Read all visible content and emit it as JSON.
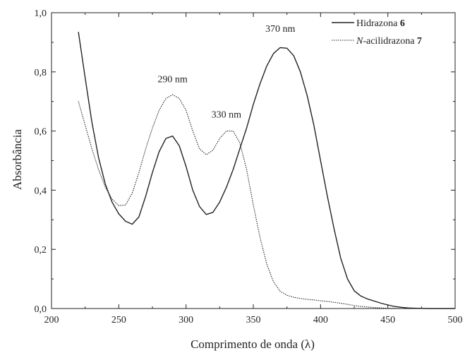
{
  "chart_data": {
    "type": "line",
    "title": "",
    "xlabel": "Comprimento de onda (λ)",
    "ylabel": "Absorbância",
    "xlim": [
      200,
      500
    ],
    "ylim": [
      0.0,
      1.0
    ],
    "x_ticks": [
      200,
      250,
      300,
      350,
      400,
      450,
      500
    ],
    "x_tick_labels": [
      "200",
      "250",
      "300",
      "350",
      "400",
      "450",
      "500"
    ],
    "y_ticks": [
      0.0,
      0.2,
      0.4,
      0.6,
      0.8,
      1.0
    ],
    "y_tick_labels": [
      "0,0",
      "0,2",
      "0,4",
      "0,6",
      "0,8",
      "1,0"
    ],
    "grid": false,
    "legend_position": "top-right",
    "annotations": [
      {
        "text": "370 nm",
        "x": 370,
        "y": 0.935
      },
      {
        "text": "290 nm",
        "x": 290,
        "y": 0.765
      },
      {
        "text": "330 nm",
        "x": 330,
        "y": 0.645
      }
    ],
    "series": [
      {
        "name_plain": "Hidrazona ",
        "name_bold": "6",
        "style": "solid",
        "color": "#222222",
        "points": [
          [
            220,
            0.935
          ],
          [
            225,
            0.78
          ],
          [
            230,
            0.63
          ],
          [
            235,
            0.51
          ],
          [
            240,
            0.42
          ],
          [
            245,
            0.36
          ],
          [
            250,
            0.32
          ],
          [
            255,
            0.295
          ],
          [
            260,
            0.285
          ],
          [
            265,
            0.31
          ],
          [
            270,
            0.38
          ],
          [
            275,
            0.46
          ],
          [
            280,
            0.53
          ],
          [
            285,
            0.575
          ],
          [
            290,
            0.583
          ],
          [
            295,
            0.55
          ],
          [
            300,
            0.48
          ],
          [
            305,
            0.4
          ],
          [
            310,
            0.345
          ],
          [
            315,
            0.318
          ],
          [
            320,
            0.325
          ],
          [
            325,
            0.36
          ],
          [
            330,
            0.41
          ],
          [
            335,
            0.47
          ],
          [
            340,
            0.54
          ],
          [
            345,
            0.61
          ],
          [
            350,
            0.69
          ],
          [
            355,
            0.76
          ],
          [
            360,
            0.82
          ],
          [
            365,
            0.862
          ],
          [
            370,
            0.882
          ],
          [
            375,
            0.88
          ],
          [
            380,
            0.855
          ],
          [
            385,
            0.8
          ],
          [
            390,
            0.72
          ],
          [
            395,
            0.62
          ],
          [
            400,
            0.5
          ],
          [
            405,
            0.38
          ],
          [
            410,
            0.27
          ],
          [
            415,
            0.17
          ],
          [
            420,
            0.1
          ],
          [
            425,
            0.06
          ],
          [
            430,
            0.042
          ],
          [
            435,
            0.032
          ],
          [
            440,
            0.025
          ],
          [
            445,
            0.018
          ],
          [
            450,
            0.012
          ],
          [
            455,
            0.007
          ],
          [
            460,
            0.004
          ],
          [
            465,
            0.002
          ],
          [
            470,
            0.001
          ],
          [
            480,
            0.0
          ],
          [
            500,
            0.0
          ]
        ]
      },
      {
        "name_plain": "-acilidrazona ",
        "name_italic": "N",
        "name_bold": "7",
        "style": "dotted",
        "color": "#222222",
        "points": [
          [
            220,
            0.7
          ],
          [
            225,
            0.62
          ],
          [
            230,
            0.54
          ],
          [
            235,
            0.47
          ],
          [
            240,
            0.41
          ],
          [
            245,
            0.37
          ],
          [
            250,
            0.348
          ],
          [
            255,
            0.35
          ],
          [
            260,
            0.39
          ],
          [
            265,
            0.46
          ],
          [
            270,
            0.54
          ],
          [
            275,
            0.61
          ],
          [
            280,
            0.67
          ],
          [
            285,
            0.71
          ],
          [
            290,
            0.723
          ],
          [
            295,
            0.71
          ],
          [
            300,
            0.67
          ],
          [
            305,
            0.6
          ],
          [
            310,
            0.54
          ],
          [
            315,
            0.52
          ],
          [
            320,
            0.535
          ],
          [
            325,
            0.575
          ],
          [
            330,
            0.6
          ],
          [
            335,
            0.6
          ],
          [
            340,
            0.56
          ],
          [
            345,
            0.47
          ],
          [
            350,
            0.35
          ],
          [
            355,
            0.24
          ],
          [
            360,
            0.15
          ],
          [
            365,
            0.09
          ],
          [
            370,
            0.058
          ],
          [
            375,
            0.045
          ],
          [
            380,
            0.038
          ],
          [
            385,
            0.034
          ],
          [
            390,
            0.031
          ],
          [
            395,
            0.029
          ],
          [
            400,
            0.026
          ],
          [
            405,
            0.024
          ],
          [
            410,
            0.021
          ],
          [
            415,
            0.018
          ],
          [
            420,
            0.014
          ],
          [
            425,
            0.01
          ],
          [
            430,
            0.007
          ],
          [
            435,
            0.005
          ],
          [
            440,
            0.003
          ],
          [
            450,
            0.001
          ],
          [
            460,
            0.0
          ],
          [
            500,
            0.0
          ]
        ]
      }
    ]
  }
}
